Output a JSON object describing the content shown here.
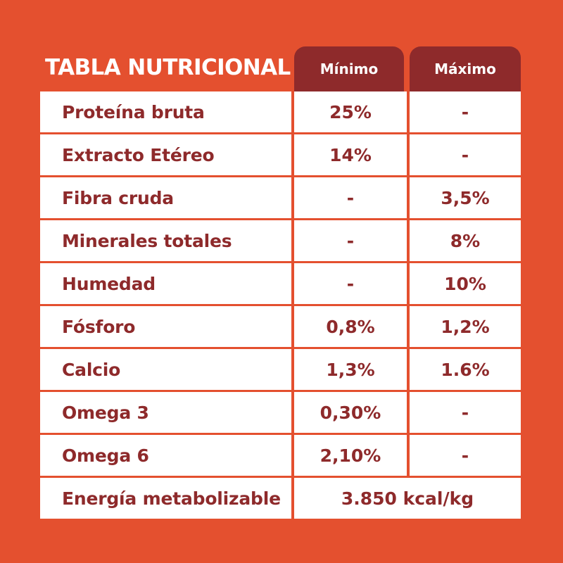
{
  "table": {
    "title": "TABLA NUTRICIONAL",
    "headers": {
      "minimo": "Mínimo",
      "maximo": "Máximo"
    },
    "rows": [
      {
        "nutrient": "Proteína bruta",
        "min": "25%",
        "max": "-"
      },
      {
        "nutrient": "Extracto Etéreo",
        "min": "14%",
        "max": "-"
      },
      {
        "nutrient": "Fibra cruda",
        "min": "-",
        "max": "3,5%"
      },
      {
        "nutrient": "Minerales totales",
        "min": "-",
        "max": "8%"
      },
      {
        "nutrient": "Humedad",
        "min": "-",
        "max": "10%"
      },
      {
        "nutrient": "Fósforo",
        "min": "0,8%",
        "max": "1,2%"
      },
      {
        "nutrient": "Calcio",
        "min": "1,3%",
        "max": "1.6%"
      },
      {
        "nutrient": "Omega 3",
        "min": "0,30%",
        "max": "-"
      },
      {
        "nutrient": "Omega 6",
        "min": "2,10%",
        "max": "-"
      }
    ],
    "energy": {
      "label": "Energía metabolizable",
      "value": "3.850 kcal/kg"
    }
  },
  "colors": {
    "background": "#e4502f",
    "header": "#8e2a2b",
    "cell": "#ffffff",
    "text_dark": "#8e2a2b"
  }
}
